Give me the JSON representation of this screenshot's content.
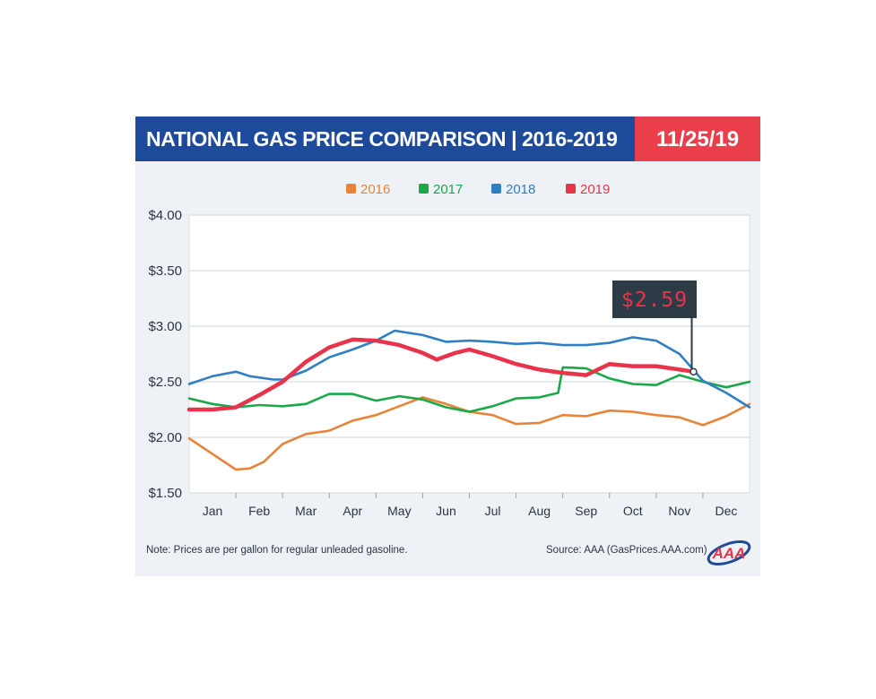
{
  "header": {
    "title": "NATIONAL GAS PRICE COMPARISON | 2016-2019",
    "date": "11/25/19"
  },
  "footer": {
    "note": "Note: Prices are per gallon for regular unleaded gasoline.",
    "source": "Source: AAA (GasPrices.AAA.com)",
    "logo_text": "AAA"
  },
  "callout": {
    "label": "$2.59",
    "year": "2019",
    "x": 10.8,
    "y": 2.59
  },
  "colors": {
    "2016": "#e8843a",
    "2017": "#1aa84a",
    "2018": "#2f7fc4",
    "2019": "#e8344a",
    "header": "#1e4a9b",
    "date_box": "#ea3f4b",
    "background": "#eef2f6",
    "callout_bg": "#2d3b46",
    "callout_text": "#e8344a"
  },
  "chart_data": {
    "type": "line",
    "title": "",
    "xlabel": "",
    "ylabel": "",
    "x_unit": "month",
    "categories": [
      "Jan",
      "Feb",
      "Mar",
      "Apr",
      "May",
      "Jun",
      "Jul",
      "Aug",
      "Sep",
      "Oct",
      "Nov",
      "Dec"
    ],
    "xlim": [
      0,
      12
    ],
    "ylim": [
      1.5,
      4.0
    ],
    "y_ticks": [
      1.5,
      2.0,
      2.5,
      3.0,
      3.5,
      4.0
    ],
    "y_tick_labels": [
      "$1.50",
      "$2.00",
      "$2.50",
      "$3.00",
      "$3.50",
      "$4.00"
    ],
    "grid": true,
    "legend_position": "top-center",
    "series": [
      {
        "name": "2016",
        "x": [
          0,
          0.5,
          1,
          1.3,
          1.6,
          2,
          2.5,
          3,
          3.5,
          4,
          4.5,
          5,
          5.5,
          6,
          6.5,
          7,
          7.5,
          8,
          8.5,
          9,
          9.5,
          10,
          10.5,
          11,
          11.5,
          12
        ],
        "y": [
          1.99,
          1.85,
          1.71,
          1.72,
          1.78,
          1.94,
          2.03,
          2.06,
          2.15,
          2.2,
          2.28,
          2.36,
          2.3,
          2.23,
          2.2,
          2.12,
          2.13,
          2.2,
          2.19,
          2.24,
          2.23,
          2.2,
          2.18,
          2.11,
          2.19,
          2.3
        ]
      },
      {
        "name": "2017",
        "x": [
          0,
          0.5,
          1,
          1.5,
          2,
          2.5,
          3,
          3.5,
          4,
          4.5,
          5,
          5.5,
          6,
          6.5,
          7,
          7.5,
          7.9,
          8,
          8.5,
          9,
          9.5,
          10,
          10.5,
          11,
          11.5,
          12
        ],
        "y": [
          2.35,
          2.3,
          2.27,
          2.29,
          2.28,
          2.3,
          2.39,
          2.39,
          2.33,
          2.37,
          2.34,
          2.27,
          2.23,
          2.28,
          2.35,
          2.36,
          2.4,
          2.63,
          2.62,
          2.53,
          2.48,
          2.47,
          2.56,
          2.5,
          2.45,
          2.5
        ]
      },
      {
        "name": "2018",
        "x": [
          0,
          0.5,
          1,
          1.3,
          1.8,
          2,
          2.5,
          3,
          3.5,
          4,
          4.4,
          5,
          5.5,
          6,
          6.5,
          7,
          7.5,
          8,
          8.5,
          9,
          9.5,
          10,
          10.5,
          11,
          11.5,
          12
        ],
        "y": [
          2.48,
          2.55,
          2.59,
          2.55,
          2.52,
          2.52,
          2.6,
          2.72,
          2.79,
          2.87,
          2.96,
          2.92,
          2.86,
          2.87,
          2.86,
          2.84,
          2.85,
          2.83,
          2.83,
          2.85,
          2.9,
          2.87,
          2.75,
          2.51,
          2.4,
          2.27
        ]
      },
      {
        "name": "2019",
        "x": [
          0,
          0.5,
          1,
          1.5,
          2,
          2.5,
          3,
          3.5,
          4,
          4.5,
          5,
          5.3,
          5.7,
          6,
          6.5,
          7,
          7.5,
          8,
          8.5,
          9,
          9.5,
          10,
          10.5,
          10.8
        ],
        "y": [
          2.25,
          2.25,
          2.27,
          2.38,
          2.5,
          2.68,
          2.81,
          2.88,
          2.87,
          2.83,
          2.76,
          2.7,
          2.76,
          2.79,
          2.73,
          2.66,
          2.61,
          2.58,
          2.56,
          2.66,
          2.64,
          2.64,
          2.61,
          2.59
        ]
      }
    ]
  }
}
